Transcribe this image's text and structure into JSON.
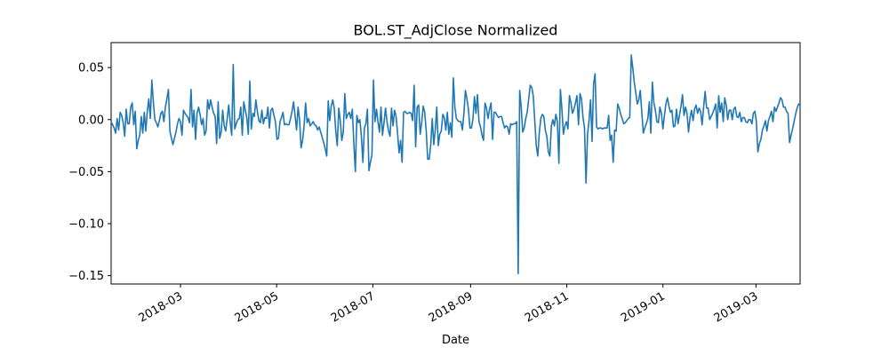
{
  "chart_data": {
    "type": "line",
    "title": "BOL.ST_AdjClose Normalized",
    "xlabel": "Date",
    "ylabel": "",
    "xlim": [
      "2018-01-16",
      "2019-03-29"
    ],
    "ylim": [
      -0.158,
      0.074
    ],
    "grid": false,
    "legend": "none",
    "color": "#1f77b4",
    "x_ticks": [
      "2018-03-01",
      "2018-05-01",
      "2018-07-01",
      "2018-09-01",
      "2018-11-01",
      "2019-01-01",
      "2019-03-01"
    ],
    "x_tick_labels": [
      "2018-03",
      "2018-05",
      "2018-07",
      "2018-09",
      "2018-11",
      "2019-01",
      "2019-03"
    ],
    "y_ticks": [
      0.05,
      0.0,
      -0.05,
      -0.1,
      -0.15
    ],
    "y_tick_labels": [
      "0.05",
      "0.00",
      "−0.05",
      "−0.10",
      "−0.15"
    ],
    "series": [
      {
        "start_date": "2018-01-16",
        "end_date": "2019-03-29",
        "values": [
          -0.002,
          -0.005,
          -0.008,
          -0.013,
          0.001,
          -0.01,
          0.007,
          0.004,
          -0.003,
          -0.016,
          0.01,
          -0.004,
          -0.004,
          0.012,
          0.016,
          -0.005,
          0.008,
          -0.028,
          -0.02,
          -0.015,
          0.003,
          -0.013,
          0.007,
          -0.011,
          0.008,
          0.02,
          0.001,
          0.038,
          0.017,
          0.0,
          -0.003,
          -0.007,
          -0.001,
          0.006,
          0.008,
          -0.002,
          0.012,
          0.02,
          0.029,
          -0.011,
          -0.018,
          -0.024,
          -0.018,
          -0.012,
          -0.004,
          0.001,
          -0.002,
          -0.015,
          0.009,
          0.006,
          0.004,
          0.002,
          -0.003,
          0.029,
          -0.007,
          0.009,
          -0.019,
          0.006,
          0.012,
          0.005,
          -0.005,
          0.001,
          -0.015,
          -0.011,
          0.019,
          0.01,
          0.019,
          0.012,
          0.006,
          0.003,
          -0.023,
          0.017,
          -0.018,
          -0.012,
          0.009,
          -0.006,
          -0.011,
          0.001,
          0.014,
          -0.003,
          -0.015,
          0.053,
          -0.009,
          -0.004,
          0.0,
          0.001,
          0.012,
          -0.015,
          0.017,
          0.009,
          0.002,
          -0.014,
          0.037,
          -0.009,
          0.006,
          0.003,
          0.019,
          0.008,
          -0.001,
          -0.003,
          0.009,
          -0.004,
          0.002,
          0.001,
          0.012,
          -0.008,
          0.009,
          0.011,
          0.004,
          -0.002,
          -0.019,
          -0.018,
          -0.002,
          0.002,
          0.007,
          -0.005,
          -0.004,
          -0.005,
          -0.005,
          0.001,
          0.008,
          0.017,
          0.004,
          -0.01,
          0.012,
          0.0,
          -0.027,
          -0.02,
          -0.006,
          0.016,
          -0.003,
          0.001,
          -0.006,
          -0.004,
          -0.002,
          -0.005,
          -0.006,
          -0.01,
          -0.007,
          -0.012,
          -0.017,
          -0.022,
          -0.028,
          -0.035,
          0.018,
          -0.001,
          0.013,
          0.019,
          0.011,
          -0.011,
          -0.025,
          0.011,
          -0.001,
          -0.02,
          -0.012,
          0.025,
          0.001,
          0.005,
          0.007,
          0.001,
          0.01,
          -0.023,
          -0.05,
          0.004,
          -0.003,
          0.0,
          -0.016,
          -0.041,
          -0.008,
          -0.004,
          0.01,
          -0.049,
          -0.041,
          -0.034,
          0.038,
          -0.002,
          0.01,
          -0.002,
          -0.012,
          0.012,
          -0.015,
          -0.003,
          0.011,
          -0.002,
          -0.011,
          -0.016,
          0.011,
          -0.006,
          0.009,
          0.003,
          -0.013,
          -0.032,
          -0.02,
          -0.041,
          0.007,
          0.008,
          0.006,
          0.006,
          0.007,
          0.006,
          -0.001,
          0.033,
          -0.026,
          0.012,
          0.014,
          -0.014,
          -0.003,
          0.013,
          0.007,
          -0.011,
          -0.038,
          -0.038,
          -0.024,
          0.001,
          -0.024,
          -0.01,
          0.012,
          -0.025,
          -0.014,
          -0.011,
          0.005,
          0.002,
          -0.01,
          0.007,
          -0.014,
          -0.003,
          -0.017,
          0.04,
          0.012,
          0.001,
          -0.001,
          -0.002,
          -0.002,
          -0.01,
          0.006,
          0.028,
          0.02,
          0.01,
          -0.008,
          -0.008,
          0.001,
          0.022,
          0.006,
          0.024,
          -0.002,
          -0.007,
          -0.015,
          -0.02,
          0.016,
          0.011,
          0.001,
          0.01,
          0.016,
          -0.019,
          0.007,
          0.007,
          0.004,
          0.002,
          0.003,
          0.003,
          -0.003,
          -0.008,
          -0.006,
          -0.007,
          -0.014,
          -0.004,
          -0.005,
          -0.004,
          -0.004,
          -0.002,
          -0.148,
          0.028,
          0.012,
          -0.012,
          -0.008,
          0.001,
          0.007,
          0.02,
          0.033,
          0.031,
          0.023,
          -0.001,
          -0.025,
          -0.035,
          -0.013,
          0.001,
          0.005,
          0.003,
          -0.01,
          -0.016,
          -0.031,
          -0.035,
          -0.006,
          0.0,
          -0.006,
          0.005,
          -0.002,
          -0.042,
          0.029,
          0.01,
          -0.014,
          -0.006,
          -0.002,
          -0.009,
          0.023,
          0.016,
          0.006,
          0.01,
          0.016,
          0.023,
          -0.005,
          0.025,
          0.02,
          0.002,
          -0.008,
          -0.061,
          -0.014,
          -0.001,
          0.019,
          -0.021,
          0.034,
          0.044,
          -0.007,
          -0.009,
          -0.008,
          -0.008,
          -0.009,
          -0.008,
          -0.008,
          -0.008,
          0.004,
          -0.02,
          -0.015,
          -0.041,
          -0.01,
          -0.011,
          0.015,
          0.011,
          0.005,
          0.001,
          -0.004,
          -0.003,
          -0.001,
          0.001,
          0.002,
          0.062,
          0.05,
          0.036,
          0.026,
          0.015,
          0.019,
          0.028,
          0.007,
          -0.013,
          -0.008,
          -0.004,
          0.001,
          0.017,
          -0.013,
          0.036,
          0.016,
          0.009,
          -0.002,
          -0.003,
          0.012,
          0.006,
          -0.009,
          0.004,
          0.015,
          0.021,
          0.013,
          0.007,
          0.009,
          -0.007,
          -0.006,
          0.01,
          -0.004,
          0.004,
          0.013,
          0.024,
          0.004,
          0.012,
          0.006,
          -0.012,
          0.002,
          0.009,
          -0.001,
          0.01,
          0.014,
          0.006,
          0.011,
          0.008,
          -0.005,
          0.012,
          0.027,
          0.011,
          0.011,
          0.0,
          0.003,
          0.006,
          0.01,
          0.015,
          -0.008,
          0.023,
          0.007,
          0.016,
          -0.002,
          0.021,
          0.014,
          0.0,
          0.009,
          0.009,
          0.0,
          0.01,
          0.012,
          0.003,
          0.002,
          0.007,
          -0.002,
          0.002,
          0.002,
          -0.002,
          -0.003,
          0.0,
          0.0,
          -0.004,
          0.006,
          0.008,
          -0.002,
          -0.031,
          -0.023,
          -0.019,
          -0.01,
          -0.006,
          -0.001,
          -0.011,
          -0.001,
          0.003,
          0.008,
          -0.002,
          0.012,
          0.008,
          0.012,
          0.016,
          0.021,
          0.019,
          0.012,
          0.012,
          0.008,
          0.006,
          -0.022,
          -0.015,
          -0.009,
          -0.002,
          0.005,
          0.011,
          0.015,
          0.014
        ]
      }
    ]
  }
}
